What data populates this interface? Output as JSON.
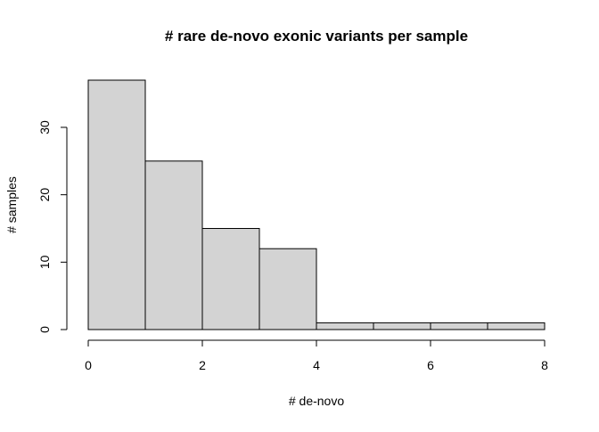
{
  "chart_data": {
    "type": "bar",
    "subtype": "histogram",
    "title": "# rare de-novo exonic variants per sample",
    "xlabel": "# de-novo",
    "ylabel": "# samples",
    "bins": [
      {
        "start": 0,
        "end": 1,
        "count": 37
      },
      {
        "start": 1,
        "end": 2,
        "count": 25
      },
      {
        "start": 2,
        "end": 3,
        "count": 15
      },
      {
        "start": 3,
        "end": 4,
        "count": 12
      },
      {
        "start": 4,
        "end": 5,
        "count": 1
      },
      {
        "start": 5,
        "end": 6,
        "count": 1
      },
      {
        "start": 6,
        "end": 7,
        "count": 1
      },
      {
        "start": 7,
        "end": 8,
        "count": 1
      }
    ],
    "xlim": [
      0,
      8
    ],
    "ylim": [
      0,
      37
    ],
    "xticks": [
      0,
      2,
      4,
      6,
      8
    ],
    "yticks": [
      0,
      10,
      20,
      30
    ],
    "grid": false,
    "legend": "none",
    "bar_fill": "#d3d3d3",
    "bar_stroke": "#000000"
  }
}
